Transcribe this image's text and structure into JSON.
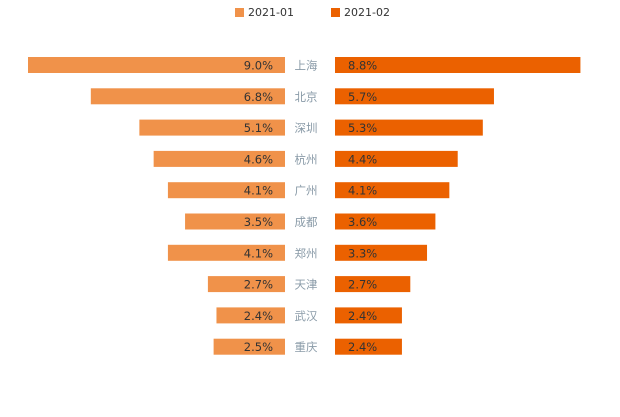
{
  "chart_data": {
    "type": "bar",
    "orientation": "horizontal-butterfly",
    "title": "",
    "legend_position": "top-center",
    "categories": [
      "上海",
      "北京",
      "深圳",
      "杭州",
      "广州",
      "成都",
      "郑州",
      "天津",
      "武汉",
      "重庆"
    ],
    "series": [
      {
        "name": "2021-01",
        "color": "#F0924A",
        "side": "left",
        "values": [
          9.0,
          6.8,
          5.1,
          4.6,
          4.1,
          3.5,
          4.1,
          2.7,
          2.4,
          2.5
        ],
        "labels": [
          "9.0%",
          "6.8%",
          "5.1%",
          "4.6%",
          "4.1%",
          "3.5%",
          "4.1%",
          "2.7%",
          "2.4%",
          "2.5%"
        ]
      },
      {
        "name": "2021-02",
        "color": "#EB6100",
        "side": "right",
        "values": [
          8.8,
          5.7,
          5.3,
          4.4,
          4.1,
          3.6,
          3.3,
          2.7,
          2.4,
          2.4
        ],
        "labels": [
          "8.8%",
          "5.7%",
          "5.3%",
          "4.4%",
          "4.1%",
          "3.6%",
          "3.3%",
          "2.7%",
          "2.4%",
          "2.4%"
        ]
      }
    ],
    "value_unit": "%",
    "xlim": [
      0,
      9.0
    ],
    "grid": false,
    "category_label_color": "#8A9BA8",
    "value_label_color": "#333333"
  }
}
